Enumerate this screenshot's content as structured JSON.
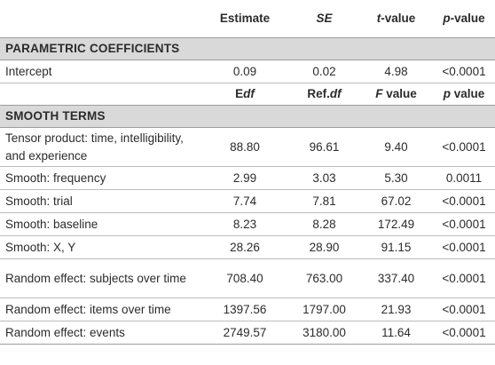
{
  "header": {
    "col0": "",
    "estimate": "Estimate",
    "se": "SE",
    "t_italic": "t",
    "t_rest": "-value",
    "p_italic": "p",
    "p_rest": "-value"
  },
  "parametric": {
    "title": "PARAMETRIC COEFFICIENTS",
    "rows": [
      {
        "label": "Intercept",
        "v1": "0.09",
        "v2": "0.02",
        "v3": "4.98",
        "v4": "<0.0001"
      }
    ]
  },
  "subheader": {
    "edf_prefix": "E",
    "edf_italic": "df",
    "refdf_prefix": "Ref.",
    "refdf_italic": "df",
    "f_italic": "F",
    "f_rest": " value",
    "p_italic": "p",
    "p_rest": " value"
  },
  "smooth": {
    "title": "SMOOTH TERMS",
    "rows": [
      {
        "label": "Tensor product: time, intelligibility, and experience",
        "v1": "88.80",
        "v2": "96.61",
        "v3": "9.40",
        "v4": "<0.0001"
      },
      {
        "label": "Smooth: frequency",
        "v1": "2.99",
        "v2": "3.03",
        "v3": "5.30",
        "v4": "0.0011"
      },
      {
        "label": "Smooth: trial",
        "v1": "7.74",
        "v2": "7.81",
        "v3": "67.02",
        "v4": "<0.0001"
      },
      {
        "label": "Smooth: baseline",
        "v1": "8.23",
        "v2": "8.28",
        "v3": "172.49",
        "v4": "<0.0001"
      },
      {
        "label": "Smooth: X, Y",
        "v1": "28.26",
        "v2": "28.90",
        "v3": "91.15",
        "v4": "<0.0001"
      },
      {
        "label": "Random effect: subjects over time",
        "v1": "708.40",
        "v2": "763.00",
        "v3": "337.40",
        "v4": "<0.0001"
      },
      {
        "label": "Random effect: items over time",
        "v1": "1397.56",
        "v2": "1797.00",
        "v3": "21.93",
        "v4": "<0.0001"
      },
      {
        "label": "Random effect: events",
        "v1": "2749.57",
        "v2": "3180.00",
        "v3": "11.64",
        "v4": "<0.0001"
      }
    ]
  }
}
